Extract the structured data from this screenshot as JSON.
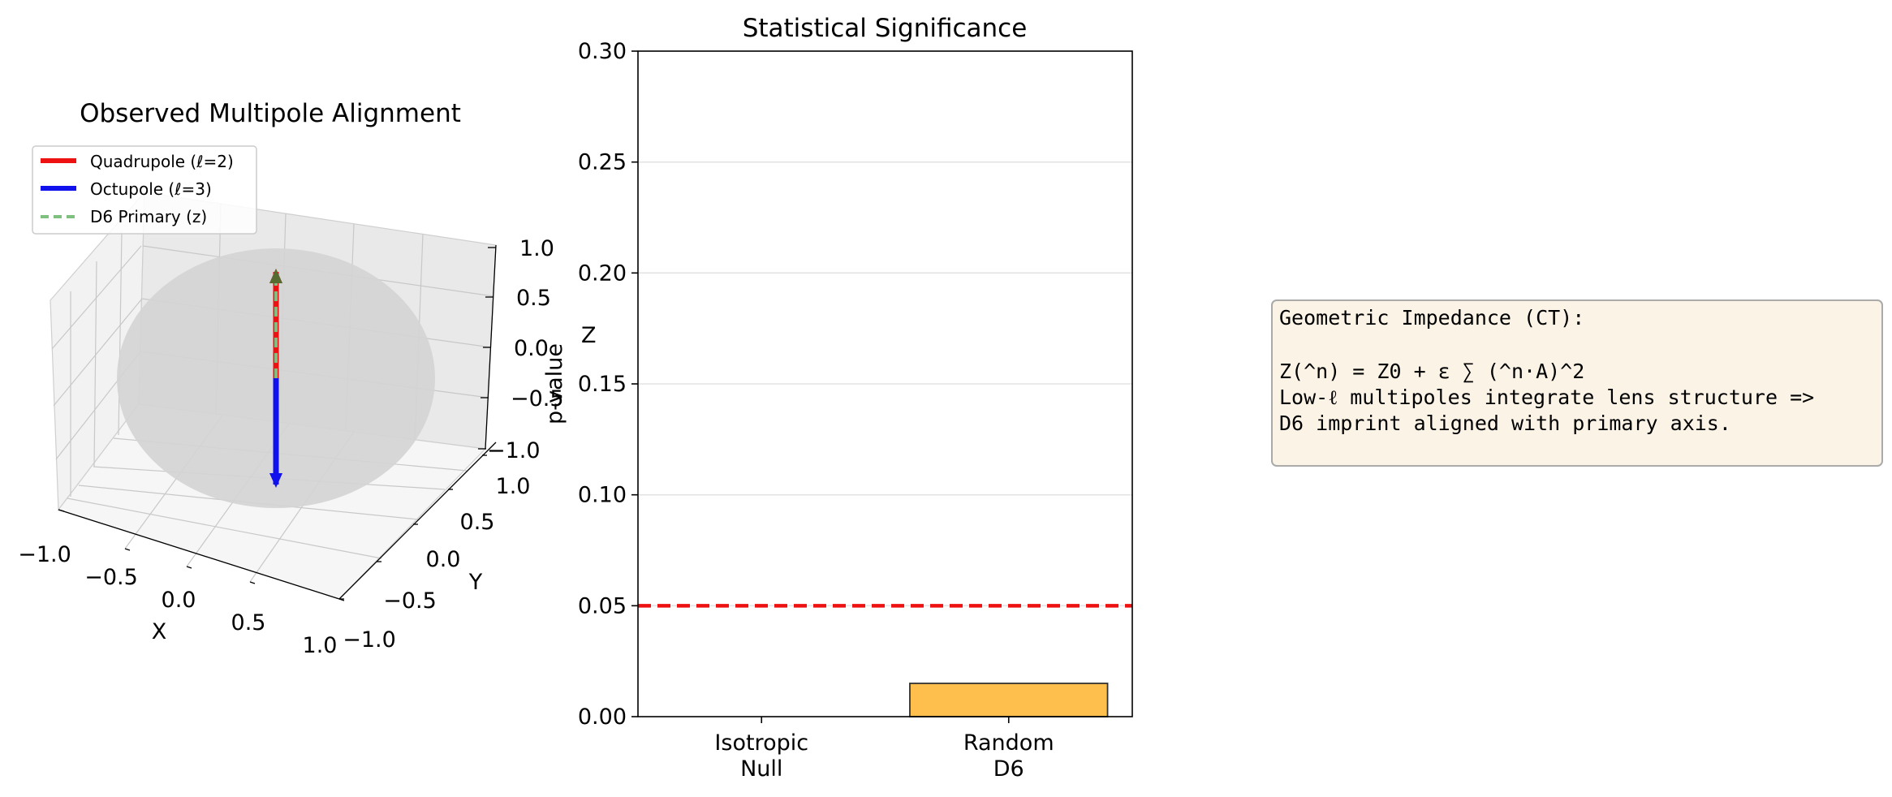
{
  "colors": {
    "quadrupole": "#ee1111",
    "octupole": "#1111ee",
    "d6_primary": "#7fbf7f",
    "arrow_tip": "#556b2f",
    "sphere": "#d4d4d4",
    "bar": "#ffbf4c",
    "threshold": "#ee1111",
    "textbox_fill": "#fbf3e6",
    "textbox_edge": "#aaaaaa"
  },
  "chart_data": [
    {
      "type": "3d-vector",
      "title": "Observed Multipole Alignment",
      "xlabel": "X",
      "ylabel": "Y",
      "zlabel": "Z",
      "xlim": [
        -1.0,
        1.0
      ],
      "ylim": [
        -1.0,
        1.0
      ],
      "zlim": [
        -1.0,
        1.0
      ],
      "xticks": [
        "−1.0",
        "−0.5",
        "0.0",
        "0.5",
        "1.0"
      ],
      "yticks": [
        "−1.0",
        "−0.5",
        "0.0",
        "0.5",
        "1.0"
      ],
      "zticks": [
        "−1.0",
        "−0.5",
        "0.0",
        "0.5",
        "1.0"
      ],
      "grid": true,
      "legend_position": "top-left",
      "series": [
        {
          "name": "Quadrupole (ℓ=2)",
          "style": "solid",
          "vector": [
            0.0,
            0.0,
            1.0
          ]
        },
        {
          "name": "Octupole (ℓ=3)",
          "style": "solid",
          "vector": [
            0.0,
            0.0,
            -1.0
          ]
        },
        {
          "name": "D6 Primary (z)",
          "style": "dashed",
          "vector": [
            0.0,
            0.0,
            1.0
          ]
        }
      ]
    },
    {
      "type": "bar",
      "title": "Statistical Significance",
      "ylabel": "p-value",
      "categories": [
        "Isotropic\nNull",
        "Random\nD6"
      ],
      "values": [
        0.0,
        0.015
      ],
      "ylim": [
        0.0,
        0.3
      ],
      "yticks": [
        "0.00",
        "0.05",
        "0.10",
        "0.15",
        "0.20",
        "0.25",
        "0.30"
      ],
      "threshold": 0.05,
      "grid": "y"
    }
  ],
  "textbox": {
    "lines": [
      "Geometric Impedance (CT):",
      "",
      "Z(^n) = Z0 + ε ∑ (^n·A)^2",
      "Low-ℓ multipoles integrate lens structure =>",
      "D6 imprint aligned with primary axis."
    ]
  }
}
